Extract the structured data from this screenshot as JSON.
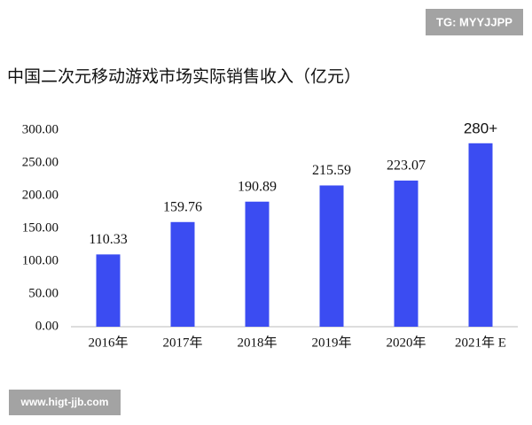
{
  "watermark_top": "TG: MYYJJPP",
  "watermark_bottom": "www.higt-jjb.com",
  "chart_data": {
    "type": "bar",
    "title": "中国二次元移动游戏市场实际销售收入（亿元）",
    "categories": [
      "2016年",
      "2017年",
      "2018年",
      "2019年",
      "2020年",
      "2021年 E"
    ],
    "values": [
      110.33,
      159.76,
      190.89,
      215.59,
      223.07,
      280
    ],
    "value_labels": [
      "110.33",
      "159.76",
      "190.89",
      "215.59",
      "223.07",
      "280+"
    ],
    "color": "#3b4cf2",
    "ylim": [
      0,
      300
    ],
    "yticks": [
      {
        "value": 0,
        "label": "0.00"
      },
      {
        "value": 50,
        "label": "50.00"
      },
      {
        "value": 100,
        "label": "100.00"
      },
      {
        "value": 150,
        "label": "150.00"
      },
      {
        "value": 200,
        "label": "200.00"
      },
      {
        "value": 250,
        "label": "250.00"
      },
      {
        "value": 300,
        "label": "300.00"
      }
    ],
    "grid": false
  }
}
